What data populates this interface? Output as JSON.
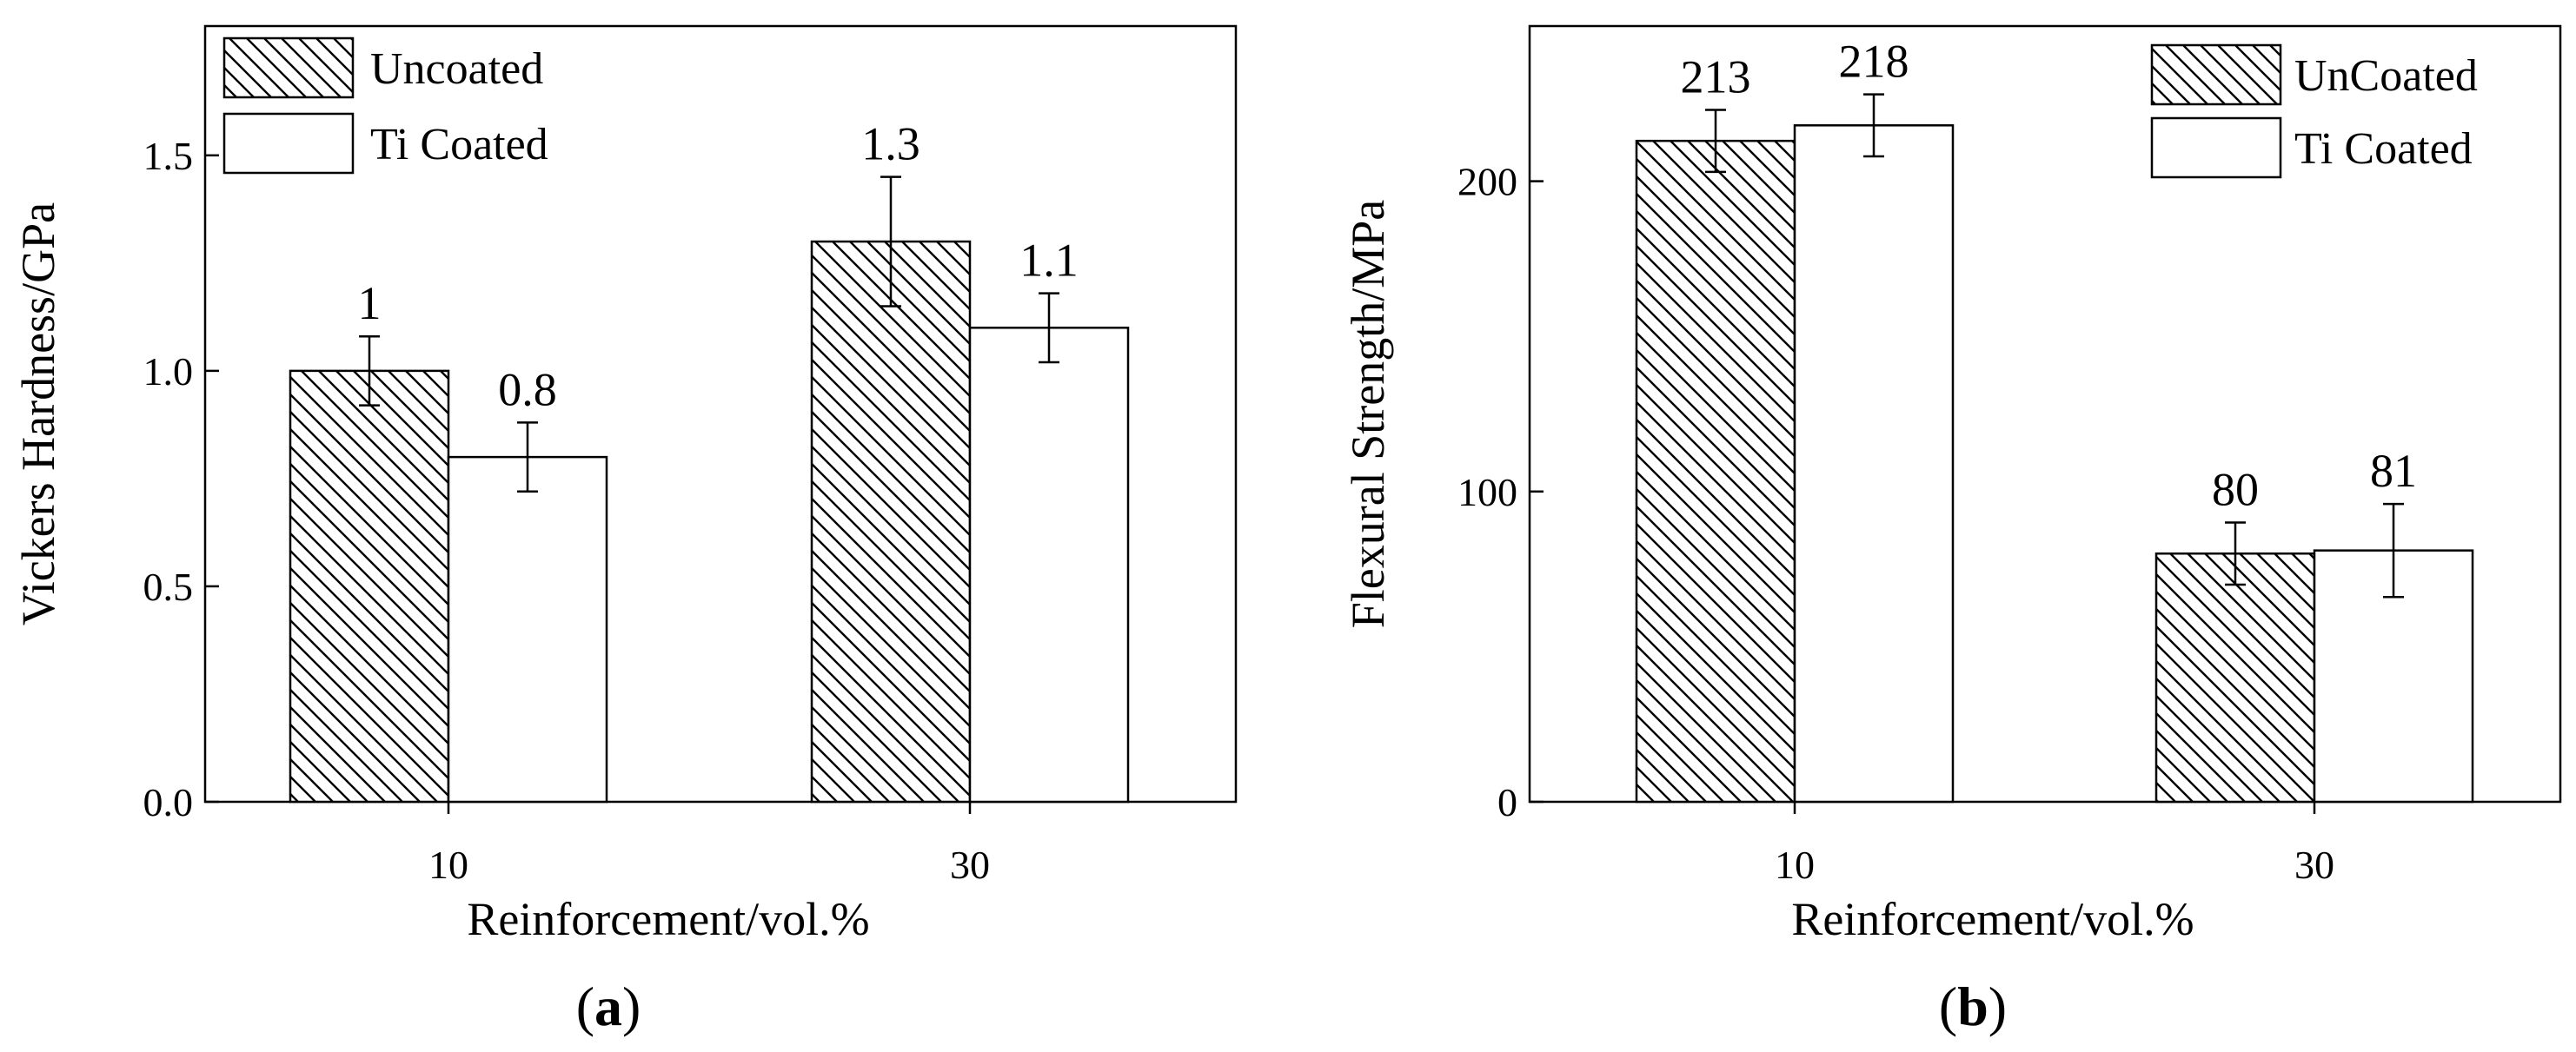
{
  "chart_data": [
    {
      "type": "bar",
      "panel_label_parts": [
        "(",
        "a",
        ")"
      ],
      "categories": [
        "10",
        "30"
      ],
      "xlabel": "Reinforcement/vol.%",
      "ylabel": "Vickers Hardness/GPa",
      "ylim": [
        0,
        1.8
      ],
      "yticks": [
        "0.0",
        "0.5",
        "1.0",
        "1.5"
      ],
      "ytick_values": [
        0,
        0.5,
        1.0,
        1.5
      ],
      "grid": false,
      "legend_position": "top-left",
      "series": [
        {
          "name": "Uncoated",
          "pattern": "hatch",
          "values": [
            1.0,
            1.3
          ],
          "errors": [
            0.08,
            0.15
          ],
          "labels": [
            "1",
            "1.3"
          ]
        },
        {
          "name": "Ti Coated",
          "pattern": "solid-white",
          "values": [
            0.8,
            1.1
          ],
          "errors": [
            0.08,
            0.08
          ],
          "labels": [
            "0.8",
            "1.1"
          ]
        }
      ]
    },
    {
      "type": "bar",
      "panel_label_parts": [
        "(",
        "b",
        ")"
      ],
      "categories": [
        "10",
        "30"
      ],
      "xlabel": "Reinforcement/vol.%",
      "ylabel": "Flexural Strength/MPa",
      "ylim": [
        0,
        250
      ],
      "yticks": [
        "0",
        "100",
        "200"
      ],
      "ytick_values": [
        0,
        100,
        200
      ],
      "grid": false,
      "legend_position": "top-right",
      "series": [
        {
          "name": "UnCoated",
          "pattern": "hatch",
          "values": [
            213,
            80
          ],
          "errors": [
            10,
            10
          ],
          "labels": [
            "213",
            "80"
          ]
        },
        {
          "name": "Ti Coated",
          "pattern": "solid-white",
          "values": [
            218,
            81
          ],
          "errors": [
            10,
            15
          ],
          "labels": [
            "218",
            "81"
          ]
        }
      ]
    }
  ],
  "colors": {
    "ink": "#000000",
    "background": "#ffffff"
  }
}
